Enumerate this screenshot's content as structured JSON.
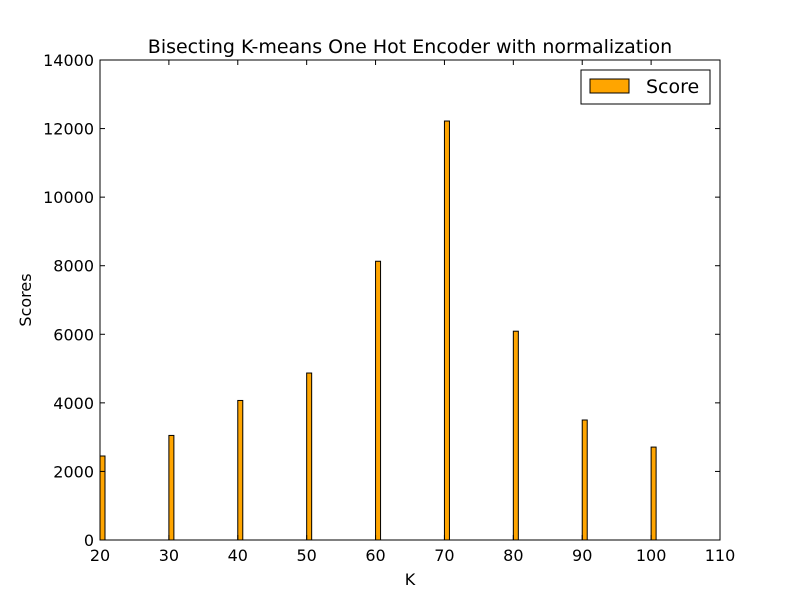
{
  "chart_data": {
    "type": "bar",
    "title": "Bisecting K-means One Hot Encoder with normalization",
    "xlabel": "K",
    "ylabel": "Scores",
    "x": [
      20,
      30,
      40,
      50,
      60,
      70,
      80,
      90,
      100
    ],
    "series": [
      {
        "name": "Score",
        "values": [
          2450,
          3050,
          4070,
          4870,
          8130,
          12220,
          6090,
          3500,
          2710
        ]
      }
    ],
    "xlim": [
      20,
      110
    ],
    "ylim": [
      0,
      14000
    ],
    "xticks": [
      "20",
      "30",
      "40",
      "50",
      "60",
      "70",
      "80",
      "90",
      "100",
      "110"
    ],
    "yticks": [
      "0",
      "2000",
      "4000",
      "6000",
      "8000",
      "10000",
      "12000",
      "14000"
    ],
    "bar_color": "#ffa500",
    "bar_edge_color": "#000000",
    "grid": false,
    "legend_position": "top-right"
  }
}
